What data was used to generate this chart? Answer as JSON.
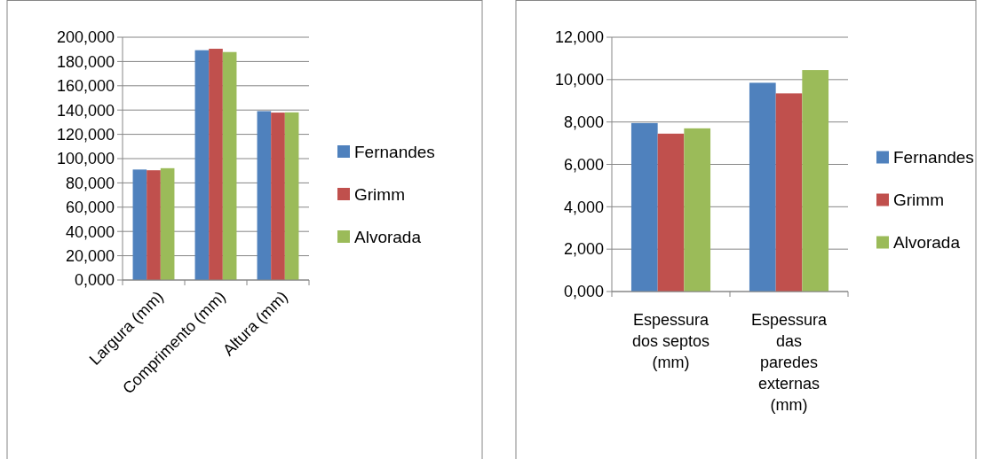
{
  "chart_data": [
    {
      "type": "bar",
      "categories": [
        "Largura (mm)",
        "Comprimento (mm)",
        "Altura (mm)"
      ],
      "series": [
        {
          "name": "Fernandes",
          "color": "#4f81bd",
          "values": [
            91.0,
            189.3,
            139.1
          ]
        },
        {
          "name": "Grimm",
          "color": "#c0504d",
          "values": [
            90.4,
            190.5,
            137.9
          ]
        },
        {
          "name": "Alvorada",
          "color": "#9bbb59",
          "values": [
            92.1,
            187.8,
            138.1
          ]
        }
      ],
      "ylim": [
        0,
        200
      ],
      "yticks": [
        {
          "value": 0,
          "label": "0,000"
        },
        {
          "value": 20,
          "label": "20,000"
        },
        {
          "value": 40,
          "label": "40,000"
        },
        {
          "value": 60,
          "label": "60,000"
        },
        {
          "value": 80,
          "label": "80,000"
        },
        {
          "value": 100,
          "label": "100,000"
        },
        {
          "value": 120,
          "label": "120,000"
        },
        {
          "value": 140,
          "label": "140,000"
        },
        {
          "value": 160,
          "label": "160,000"
        },
        {
          "value": 180,
          "label": "180,000"
        },
        {
          "value": 200,
          "label": "200,000"
        }
      ],
      "grid": "y",
      "legend": "right"
    },
    {
      "type": "bar",
      "categories": [
        "Espessura dos septos (mm)",
        "Espessura das paredes externas (mm)"
      ],
      "series": [
        {
          "name": "Fernandes",
          "color": "#4f81bd",
          "values": [
            7.95,
            9.85
          ]
        },
        {
          "name": "Grimm",
          "color": "#c0504d",
          "values": [
            7.45,
            9.35
          ]
        },
        {
          "name": "Alvorada",
          "color": "#9bbb59",
          "values": [
            7.7,
            10.45
          ]
        }
      ],
      "ylim": [
        0,
        12
      ],
      "yticks": [
        {
          "value": 0,
          "label": "0,000"
        },
        {
          "value": 2,
          "label": "2,000"
        },
        {
          "value": 4,
          "label": "4,000"
        },
        {
          "value": 6,
          "label": "6,000"
        },
        {
          "value": 8,
          "label": "8,000"
        },
        {
          "value": 10,
          "label": "10,000"
        },
        {
          "value": 12,
          "label": "12,000"
        }
      ],
      "grid": "y",
      "legend": "right"
    }
  ]
}
